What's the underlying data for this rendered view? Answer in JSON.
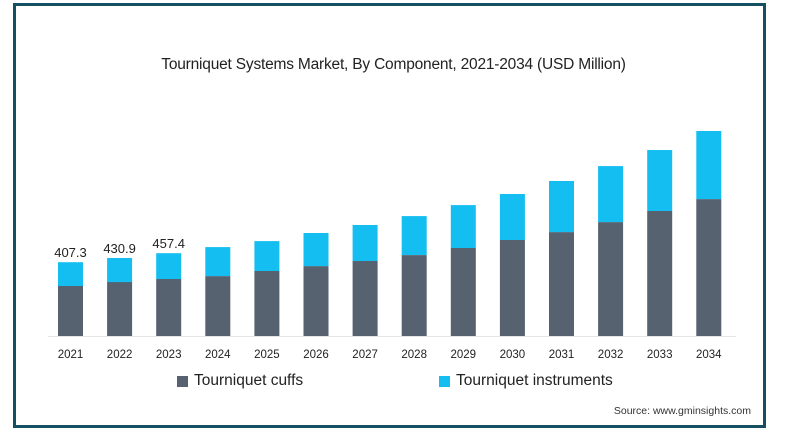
{
  "chart_data": {
    "type": "bar",
    "stacked": true,
    "title": "Tourniquet Systems Market, By Component, 2021-2034 (USD Million)",
    "xlabel": "",
    "ylabel": "",
    "categories": [
      "2021",
      "2022",
      "2023",
      "2024",
      "2025",
      "2026",
      "2027",
      "2028",
      "2029",
      "2030",
      "2031",
      "2032",
      "2033",
      "2034"
    ],
    "series": [
      {
        "name": "Tourniquet cuffs",
        "color": "#566270",
        "values": [
          276,
          298,
          315,
          331,
          359,
          386,
          414,
          447,
          486,
          530,
          574,
          629,
          690,
          756
        ]
      },
      {
        "name": "Tourniquet instruments",
        "color": "#14BEF0",
        "values": [
          131.3,
          132.9,
          142.4,
          160,
          165,
          183,
          199,
          215,
          237,
          254,
          282,
          309,
          337,
          376
        ]
      }
    ],
    "total_labels": [
      {
        "category": "2021",
        "text": "407.3"
      },
      {
        "category": "2022",
        "text": "430.9"
      },
      {
        "category": "2023",
        "text": "457.4"
      }
    ],
    "ylim": [
      0,
      1132
    ],
    "grid": false,
    "y_axis_visible": false,
    "legend_position": "bottom-center"
  },
  "legend": [
    {
      "label": "Tourniquet cuffs",
      "color": "#566270"
    },
    {
      "label": "Tourniquet instruments",
      "color": "#14BEF0"
    }
  ],
  "source": "Source: www.gminsights.com",
  "frame_color": "#144F62"
}
